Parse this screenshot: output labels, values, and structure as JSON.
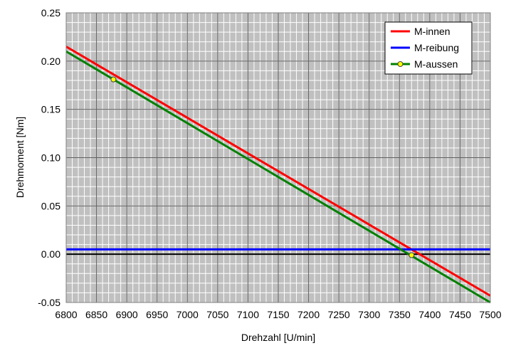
{
  "chart_data": {
    "type": "line",
    "xlabel": "Drehzahl [U/min]",
    "ylabel": "Drehmoment [Nm]",
    "xlim": [
      6800,
      7500
    ],
    "ylim": [
      -0.05,
      0.25
    ],
    "x_ticks": [
      6800,
      6850,
      6900,
      6950,
      7000,
      7050,
      7100,
      7150,
      7200,
      7250,
      7300,
      7350,
      7400,
      7450,
      7500
    ],
    "y_ticks": [
      "-0.05",
      "0.00",
      "0.05",
      "0.10",
      "0.15",
      "0.20",
      "0.25"
    ],
    "y_tick_values": [
      -0.05,
      0.0,
      0.05,
      0.1,
      0.15,
      0.2,
      0.25
    ],
    "grid": true,
    "legend_position": "top-right",
    "series": [
      {
        "name": "M-innen",
        "color": "#ff0000",
        "x": [
          6800,
          7500
        ],
        "y": [
          0.215,
          -0.043
        ]
      },
      {
        "name": "M-reibung",
        "color": "#0000ff",
        "x": [
          6800,
          7500
        ],
        "y": [
          0.005,
          0.005
        ]
      },
      {
        "name": "M-aussen",
        "color": "#008000",
        "marker_color": "#ffff00",
        "x": [
          6800,
          7500
        ],
        "y": [
          0.21,
          -0.05
        ],
        "markers": [
          [
            6878,
            0.181
          ],
          [
            7370,
            -0.001
          ]
        ]
      }
    ]
  }
}
